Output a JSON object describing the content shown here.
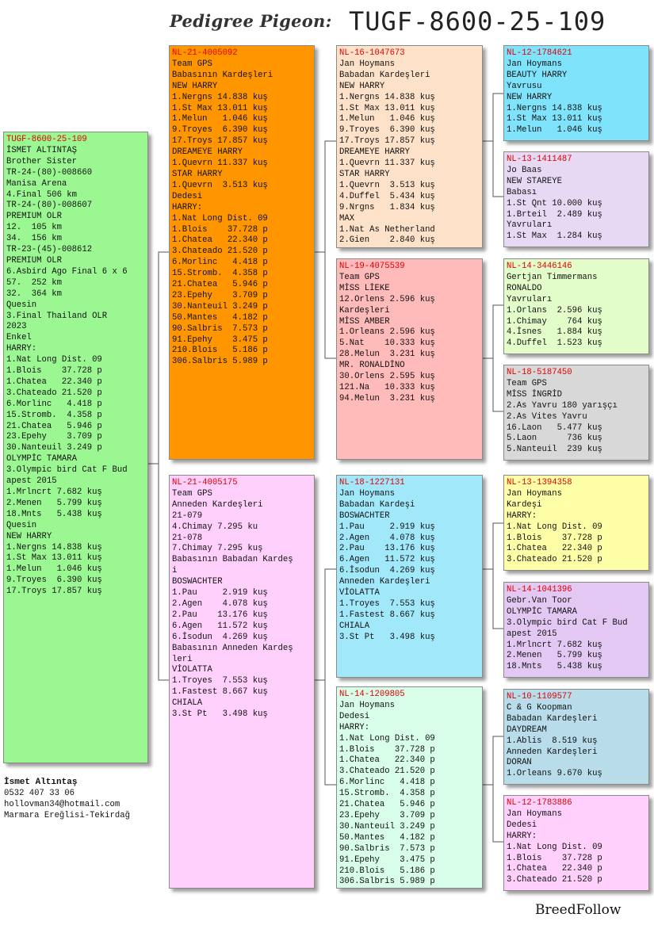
{
  "header": {
    "label": "Pedigree Pigeon:",
    "ring": "TUGF-8600-25-109"
  },
  "owner": {
    "name": "İsmet Altıntaş",
    "phone": "0532 407 33 06",
    "email": "hollovman34@hotmail.com",
    "location": "Marmara Ereğlisi-Tekirdağ"
  },
  "footer": "BreedFollow",
  "cards": {
    "subject": {
      "ring": "TUGF-8600-25-109",
      "lines": [
        "İSMET ALTINTAŞ",
        "Brother Sister",
        "TR-24-(80)-008660",
        "Manisa Arena",
        "4.Final 506 km",
        "TR-24-(80)-008607",
        "PREMIUM OLR",
        "12.  105 km",
        "34.  156 km",
        "TR-23-(45)-008612",
        "PREMIUM OLR",
        "6.Asbird Ago Final 6 x 6",
        "57.  252 km",
        "32.  364 km",
        "Quesin",
        "3.Final Thailand OLR",
        "2023",
        "Enkel",
        "HARRY:",
        "1.Nat Long Dist. 09",
        "1.Blois    37.728 p",
        "1.Chatea   22.340 p",
        "3.Chateado 21.520 p",
        "6.Morlinc   4.418 p",
        "15.Stromb.  4.358 p",
        "21.Chatea   5.946 p",
        "23.Epehy    3.709 p",
        "30.Nanteuil 3.249 p",
        "OLYMPİC TAMARA",
        "3.Olympic bird Cat F Bud",
        "apest 2015",
        "1.Mrlncrt 7.682 kuş",
        "2.Menen   5.799 kuş",
        "18.Mnts   5.438 kuş",
        "Quesin",
        "NEW HARRY",
        "1.Nergns 14.838 kuş",
        "1.St Max 13.011 kuş",
        "1.Melun   1.046 kuş",
        "9.Troyes  6.390 kuş",
        "17.Troys 17.857 kuş"
      ]
    },
    "sire": {
      "ring": "NL-21-4005092",
      "lines": [
        "Team GPS",
        "Babasının Kardeşleri",
        "NEW HARRY",
        "1.Nergns 14.838 kuş",
        "1.St Max 13.011 kuş",
        "1.Melun   1.046 kuş",
        "9.Troyes  6.390 kuş",
        "17.Troys 17.857 kuş",
        "DREAMEYE HARRY",
        "1.Quevrn 11.337 kuş",
        "STAR HARRY",
        "1.Quevrn  3.513 kuş",
        "Dedesi",
        "HARRY:",
        "1.Nat Long Dist. 09",
        "1.Blois    37.728 p",
        "1.Chatea   22.340 p",
        "3.Chateado 21.520 p",
        "6.Morlinc   4.418 p",
        "15.Stromb.  4.358 p",
        "21.Chatea   5.946 p",
        "23.Epehy    3.709 p",
        "30.Nanteuil 3.249 p",
        "50.Mantes   4.182 p",
        "90.Salbris  7.573 p",
        "91.Epehy    3.475 p",
        "210.Blois   5.186 p",
        "306.Salbris 5.989 p"
      ]
    },
    "dam": {
      "ring": "NL-21-4005175",
      "lines": [
        "Team GPS",
        "Anneden Kardeşleri",
        "21-079",
        "4.Chimay 7.295 ku",
        "21-078",
        "7.Chimay 7.295 kuş",
        "Babasının Babadan Kardeş",
        "i",
        "BOSWACHTER",
        "1.Pau     2.919 kuş",
        "2.Agen    4.078 kuş",
        "2.Pau    13.176 kuş",
        "6.Agen   11.572 kuş",
        "6.İsodun  4.269 kuş",
        "Babasının Anneden Kardeş",
        "leri",
        "VİOLATTA",
        "1.Troyes  7.553 kuş",
        "1.Fastest 8.667 kuş",
        "CHIALA",
        "3.St Pt   3.498 kuş"
      ]
    },
    "ss": {
      "ring": "NL-16-1047673",
      "lines": [
        "Jan Hoymans",
        "Babadan Kardeşleri",
        "NEW HARRY",
        "1.Nergns 14.838 kuş",
        "1.St Max 13.011 kuş",
        "1.Melun   1.046 kuş",
        "9.Troyes  6.390 kuş",
        "17.Troys 17.857 kuş",
        "DREAMEYE HARRY",
        "1.Quevrn 11.337 kuş",
        "STAR HARRY",
        "1.Quevrn  3.513 kuş",
        "4.Duffel  5.434 kuş",
        "9.Nrgns   1.834 kuş",
        "MAX",
        "1.Nat As Netherland",
        "2.Gien    2.840 kuş"
      ]
    },
    "sd": {
      "ring": "NL-19-4075539",
      "lines": [
        "Team GPS",
        "MİSS LİEKE",
        "12.Orlens 2.596 kuş",
        "Kardeşleri",
        "MİSS AMBER",
        "1.Orleans 2.596 kuş",
        "5.Nat    10.333 kuş",
        "28.Melun  3.231 kuş",
        "MR. RONALDİNO",
        "30.Orlens 2.595 kuş",
        "121.Na   10.333 kuş",
        "94.Melun  3.231 kuş"
      ]
    },
    "ds": {
      "ring": "NL-18-1227131",
      "lines": [
        "Jan Hoymans",
        "Babadan Kardeşi",
        "BOSWACHTER",
        "1.Pau     2.919 kuş",
        "2.Agen    4.078 kuş",
        "2.Pau    13.176 kuş",
        "6.Agen   11.572 kuş",
        "6.İsodun  4.269 kuş",
        "Anneden Kardeşleri",
        "VİOLATTA",
        "1.Troyes  7.553 kuş",
        "1.Fastest 8.667 kuş",
        "CHIALA",
        "3.St Pt   3.498 kuş"
      ]
    },
    "dd": {
      "ring": "NL-14-1209805",
      "lines": [
        "Jan Hoymans",
        "Dedesi",
        "HARRY:",
        "1.Nat Long Dist. 09",
        "1.Blois    37.728 p",
        "1.Chatea   22.340 p",
        "3.Chateado 21.520 p",
        "6.Morlinc   4.418 p",
        "15.Stromb.  4.358 p",
        "21.Chatea   5.946 p",
        "23.Epehy    3.709 p",
        "30.Nanteuil 3.249 p",
        "50.Mantes   4.182 p",
        "90.Salbris  7.573 p",
        "91.Epehy    3.475 p",
        "210.Blois   5.186 p",
        "306.Salbris 5.989 p"
      ]
    },
    "sss": {
      "ring": "NL-12-1784621",
      "lines": [
        "Jan Hoymans",
        "BEAUTY HARRY",
        "Yavrusu",
        "NEW HARRY",
        "1.Nergns 14.838 kuş",
        "1.St Max 13.011 kuş",
        "1.Melun   1.046 kuş"
      ]
    },
    "ssd": {
      "ring": "NL-13-1411487",
      "lines": [
        "Jo Baas",
        "NEW STAREYE",
        "Babası",
        "1.St Qnt 10.000 kuş",
        "1.Brteil  2.489 kuş",
        "Yavruları",
        "1.St Max  1.284 kuş"
      ]
    },
    "sds": {
      "ring": "NL-14-3446146",
      "lines": [
        "Gertjan Timmermans",
        "RONALDO",
        "Yavruları",
        "1.Orlans  2.596 kuş",
        "1.Chimay    764 kuş",
        "4.İsnes   1.884 kuş",
        "4.Duffel  1.523 kuş"
      ]
    },
    "sdd": {
      "ring": "NL-18-5187450",
      "lines": [
        "Team GPS",
        "MİSS İNGRİD",
        "2.As Yavru 180 yarışçı",
        "2.As Vites Yavru",
        "16.Laon   5.477 kuş",
        "5.Laon      736 kuş",
        "5.Nanteuil  239 kuş"
      ]
    },
    "dss": {
      "ring": "NL-13-1394358",
      "lines": [
        "Jan Hoymans",
        "Kardeşi",
        "HARRY:",
        "1.Nat Long Dist. 09",
        "1.Blois    37.728 p",
        "1.Chatea   22.340 p",
        "3.Chateado 21.520 p"
      ]
    },
    "dsd": {
      "ring": "NL-14-1041396",
      "lines": [
        "Gebr.Van Toor",
        "OLYMPİC TAMARA",
        "3.Olympic bird Cat F Bud",
        "apest 2015",
        "1.Mrlncrt 7.682 kuş",
        "2.Menen   5.799 kuş",
        "18.Mnts   5.438 kuş"
      ]
    },
    "dds": {
      "ring": "NL-10-1109577",
      "lines": [
        "C & G Koopman",
        "Babadan Kardeşleri",
        "DAYDREAM",
        "1.Ablis  8.519 kuş",
        "Anneden Kardeşleri",
        "DORAN",
        "1.Orleans 9.670 kuş"
      ]
    },
    "ddd": {
      "ring": "NL-12-1783886",
      "lines": [
        "Jan Hoymans",
        "Dedesi",
        "HARRY:",
        "1.Nat Long Dist. 09",
        "1.Blois    37.728 p",
        "1.Chatea   22.340 p",
        "3.Chateado 21.520 p"
      ]
    }
  },
  "colors": {
    "subject": "#9af791",
    "sire": "#ff9600",
    "dam": "#ffd0fc",
    "ss": "#fde1c8",
    "sd": "#ffbaba",
    "ds": "#a2e8fb",
    "dd": "#d8fde9",
    "sss": "#7ee3fb",
    "ssd": "#e7d8f4",
    "sds": "#e2fdc9",
    "sdd": "#d8d8d8",
    "dss": "#ffffa8",
    "dsd": "#e2c8f2",
    "dds": "#b8dcea",
    "ddd": "#ffd0fc",
    "ring_text": "#e00000",
    "connector": "#555555"
  }
}
